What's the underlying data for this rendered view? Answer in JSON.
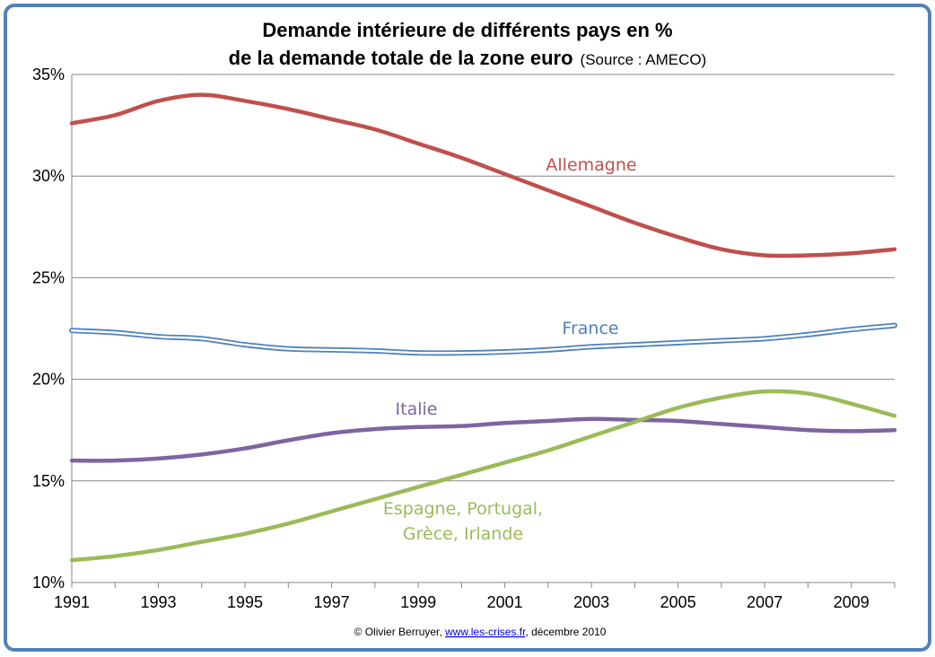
{
  "chart_data": {
    "type": "line",
    "title_line1": "Demande intérieure de différents pays en %",
    "title_line2": "de la demande totale de la zone euro",
    "title_source": "(Source : AMECO)",
    "xlabel": "",
    "ylabel": "",
    "xlim": [
      1991,
      2010
    ],
    "ylim": [
      10,
      35
    ],
    "y_ticks": [
      10,
      15,
      20,
      25,
      30,
      35
    ],
    "y_tick_labels": [
      "10%",
      "15%",
      "20%",
      "25%",
      "30%",
      "35%"
    ],
    "x_ticks": [
      1991,
      1993,
      1995,
      1997,
      1999,
      2001,
      2003,
      2005,
      2007,
      2009
    ],
    "x_tick_labels": [
      "1991",
      "1993",
      "1995",
      "1997",
      "1999",
      "2001",
      "2003",
      "2005",
      "2007",
      "2009"
    ],
    "grid": "horizontal",
    "legend": "inline labels",
    "x": [
      1991,
      1992,
      1993,
      1994,
      1995,
      1996,
      1997,
      1998,
      1999,
      2000,
      2001,
      2002,
      2003,
      2004,
      2005,
      2006,
      2007,
      2008,
      2009,
      2010
    ],
    "series": [
      {
        "name": "Allemagne",
        "color": "#c0504d",
        "style": "solid",
        "values": [
          32.6,
          33.0,
          33.7,
          34.0,
          33.7,
          33.3,
          32.8,
          32.3,
          31.6,
          30.9,
          30.1,
          29.3,
          28.5,
          27.7,
          27.0,
          26.4,
          26.1,
          26.1,
          26.2,
          26.4
        ]
      },
      {
        "name": "France",
        "color": "#4f81bd",
        "style": "double",
        "values": [
          22.4,
          22.3,
          22.1,
          22.0,
          21.7,
          21.5,
          21.45,
          21.4,
          21.3,
          21.3,
          21.35,
          21.45,
          21.6,
          21.7,
          21.8,
          21.9,
          22.0,
          22.2,
          22.45,
          22.65
        ]
      },
      {
        "name": "Italie",
        "color": "#8064a2",
        "style": "solid",
        "values": [
          16.0,
          16.0,
          16.1,
          16.3,
          16.6,
          17.0,
          17.35,
          17.55,
          17.65,
          17.7,
          17.85,
          17.95,
          18.05,
          18.0,
          17.95,
          17.8,
          17.65,
          17.5,
          17.45,
          17.5
        ]
      },
      {
        "name": "Espagne, Portugal, Grèce, Irlande",
        "label_lines": [
          "Espagne, Portugal,",
          "Grèce, Irlande"
        ],
        "color": "#9bbb59",
        "style": "solid",
        "values": [
          11.1,
          11.3,
          11.6,
          12.0,
          12.4,
          12.9,
          13.5,
          14.1,
          14.7,
          15.3,
          15.9,
          16.5,
          17.2,
          17.9,
          18.6,
          19.1,
          19.4,
          19.3,
          18.8,
          18.2
        ]
      }
    ],
    "credit": {
      "prefix": "© Olivier  Berruyer, ",
      "link": "www.les-crises.fr",
      "suffix": ",  décembre 2010"
    }
  }
}
